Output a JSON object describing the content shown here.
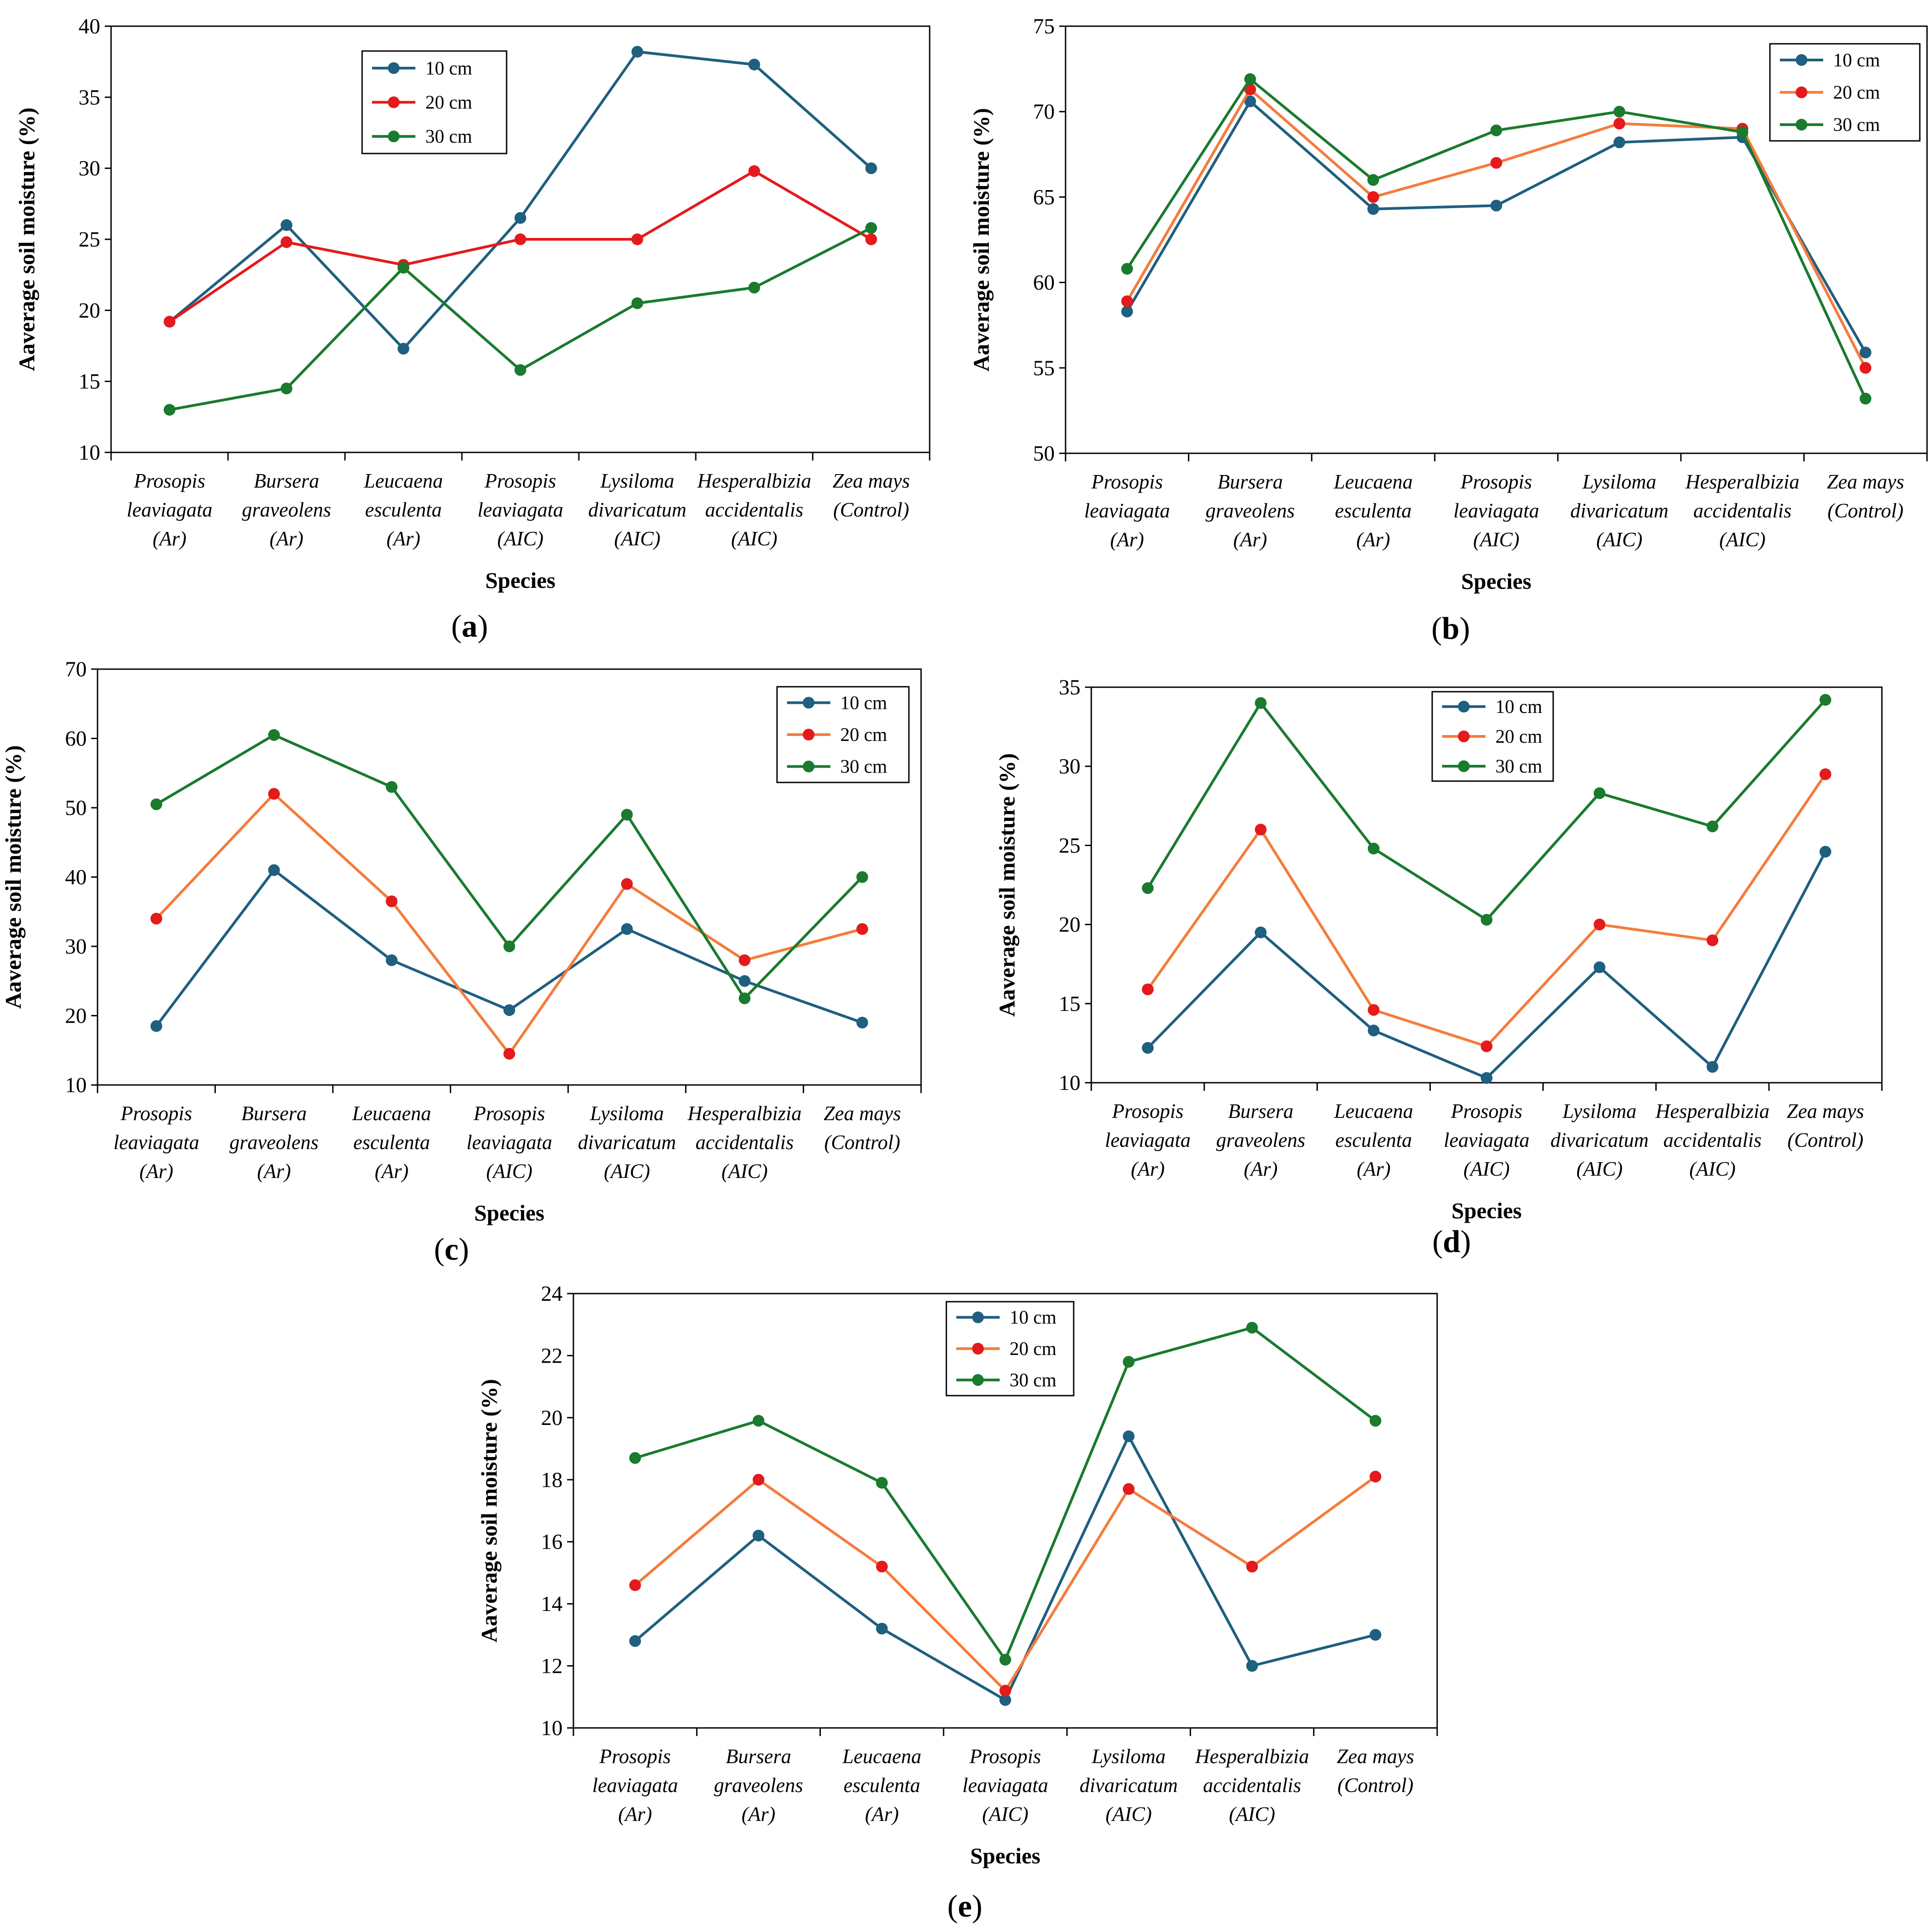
{
  "figure": {
    "panels": [
      "a",
      "b",
      "c",
      "d",
      "e"
    ]
  },
  "chart_data": [
    {
      "id": "a",
      "type": "line",
      "label": "a",
      "title": "",
      "xlabel": "Species",
      "ylabel": "Aaverage soil moisture (%)",
      "ylim": [
        10,
        40
      ],
      "yticks": [
        10,
        15,
        20,
        25,
        30,
        35,
        40
      ],
      "grid": false,
      "legend_position": "top-center",
      "categories": [
        [
          "Prosopis",
          "leaviagata",
          "(Ar)"
        ],
        [
          "Bursera",
          "graveolens",
          "(Ar)"
        ],
        [
          "Leucaena",
          "esculenta",
          "(Ar)"
        ],
        [
          "Prosopis",
          "leaviagata",
          "(AIC)"
        ],
        [
          "Lysiloma",
          "divaricatum",
          "(AIC)"
        ],
        [
          "Hesperalbizia",
          "accidentalis",
          "(AIC)"
        ],
        [
          "Zea mays",
          "(Control)"
        ]
      ],
      "series": [
        {
          "name": "10 cm",
          "color": "#1f5f7f",
          "values": [
            19.2,
            26.0,
            17.3,
            26.5,
            38.2,
            37.3,
            30.0
          ]
        },
        {
          "name": "20 cm",
          "color": "#e41a1c",
          "values": [
            19.2,
            24.8,
            23.2,
            25.0,
            25.0,
            29.8,
            25.0
          ]
        },
        {
          "name": "30 cm",
          "color": "#1a7a2e",
          "values": [
            13.0,
            14.5,
            23.0,
            15.8,
            20.5,
            21.6,
            25.8
          ]
        }
      ]
    },
    {
      "id": "b",
      "type": "line",
      "label": "b",
      "title": "",
      "xlabel": "Species",
      "ylabel": "Aaverage soil moisture (%)",
      "ylim": [
        50,
        75
      ],
      "yticks": [
        50,
        55,
        60,
        65,
        70,
        75
      ],
      "grid": false,
      "legend_position": "top-right",
      "categories": [
        [
          "Prosopis",
          "leaviagata",
          "(Ar)"
        ],
        [
          "Bursera",
          "graveolens",
          "(Ar)"
        ],
        [
          "Leucaena",
          "esculenta",
          "(Ar)"
        ],
        [
          "Prosopis",
          "leaviagata",
          "(AIC)"
        ],
        [
          "Lysiloma",
          "divaricatum",
          "(AIC)"
        ],
        [
          "Hesperalbizia",
          "accidentalis",
          "(AIC)"
        ],
        [
          "Zea mays",
          "(Control)"
        ]
      ],
      "series": [
        {
          "name": "10 cm",
          "color": "#1f5f7f",
          "marker": "#1f5f7f",
          "values": [
            58.3,
            70.6,
            64.3,
            64.5,
            68.2,
            68.5,
            55.9
          ]
        },
        {
          "name": "20 cm",
          "color": "#f47c3c",
          "marker": "#e41a1c",
          "values": [
            58.9,
            71.3,
            65.0,
            67.0,
            69.3,
            69.0,
            55.0
          ]
        },
        {
          "name": "30 cm",
          "color": "#1a7a2e",
          "marker": "#1a7a2e",
          "values": [
            60.8,
            71.9,
            66.0,
            68.9,
            70.0,
            68.8,
            53.2
          ]
        }
      ]
    },
    {
      "id": "c",
      "type": "line",
      "label": "c",
      "title": "",
      "xlabel": "Species",
      "ylabel": "Aaverage soil moisture (%)",
      "ylim": [
        10,
        70
      ],
      "yticks": [
        10,
        20,
        30,
        40,
        50,
        60,
        70
      ],
      "grid": false,
      "legend_position": "top-right",
      "categories": [
        [
          "Prosopis",
          "leaviagata",
          "(Ar)"
        ],
        [
          "Bursera",
          "graveolens",
          "(Ar)"
        ],
        [
          "Leucaena",
          "esculenta",
          "(Ar)"
        ],
        [
          "Prosopis",
          "leaviagata",
          "(AIC)"
        ],
        [
          "Lysiloma",
          "divaricatum",
          "(AIC)"
        ],
        [
          "Hesperalbizia",
          "accidentalis",
          "(AIC)"
        ],
        [
          "Zea mays",
          "(Control)"
        ]
      ],
      "series": [
        {
          "name": "10 cm",
          "color": "#1f5f7f",
          "marker": "#1f5f7f",
          "values": [
            18.5,
            41.0,
            28.0,
            20.8,
            32.5,
            25.0,
            19.0
          ]
        },
        {
          "name": "20 cm",
          "color": "#f47c3c",
          "marker": "#e41a1c",
          "values": [
            34.0,
            52.0,
            36.5,
            14.5,
            39.0,
            28.0,
            32.5
          ]
        },
        {
          "name": "30 cm",
          "color": "#1a7a2e",
          "marker": "#1a7a2e",
          "values": [
            50.5,
            60.5,
            53.0,
            30.0,
            49.0,
            22.5,
            40.0
          ]
        }
      ]
    },
    {
      "id": "d",
      "type": "line",
      "label": "d",
      "title": "",
      "xlabel": "Species",
      "ylabel": "Aaverage soil moisture (%)",
      "ylim": [
        10,
        35
      ],
      "yticks": [
        10,
        15,
        20,
        25,
        30,
        35
      ],
      "grid": false,
      "legend_position": "top-center",
      "categories": [
        [
          "Prosopis",
          "leaviagata",
          "(Ar)"
        ],
        [
          "Bursera",
          "graveolens",
          "(Ar)"
        ],
        [
          "Leucaena",
          "esculenta",
          "(Ar)"
        ],
        [
          "Prosopis",
          "leaviagata",
          "(AIC)"
        ],
        [
          "Lysiloma",
          "divaricatum",
          "(AIC)"
        ],
        [
          "Hesperalbizia",
          "accidentalis",
          "(AIC)"
        ],
        [
          "Zea mays",
          "(Control)"
        ]
      ],
      "series": [
        {
          "name": "10 cm",
          "color": "#1f5f7f",
          "marker": "#1f5f7f",
          "values": [
            12.2,
            19.5,
            13.3,
            10.3,
            17.3,
            11.0,
            24.6
          ]
        },
        {
          "name": "20 cm",
          "color": "#f47c3c",
          "marker": "#e41a1c",
          "values": [
            15.9,
            26.0,
            14.6,
            12.3,
            20.0,
            19.0,
            29.5
          ]
        },
        {
          "name": "30 cm",
          "color": "#1a7a2e",
          "marker": "#1a7a2e",
          "values": [
            22.3,
            34.0,
            24.8,
            20.3,
            28.3,
            26.2,
            34.2
          ]
        }
      ]
    },
    {
      "id": "e",
      "type": "line",
      "label": "e",
      "title": "",
      "xlabel": "Species",
      "ylabel": "Aaverage soil moisture (%)",
      "ylim": [
        10,
        24
      ],
      "yticks": [
        10,
        12,
        14,
        16,
        18,
        20,
        22,
        24
      ],
      "grid": false,
      "legend_position": "top-left",
      "categories": [
        [
          "Prosopis",
          "leaviagata",
          "(Ar)"
        ],
        [
          "Bursera",
          "graveolens",
          "(Ar)"
        ],
        [
          "Leucaena",
          "esculenta",
          "(Ar)"
        ],
        [
          "Prosopis",
          "leaviagata",
          "(AIC)"
        ],
        [
          "Lysiloma",
          "divaricatum",
          "(AIC)"
        ],
        [
          "Hesperalbizia",
          "accidentalis",
          "(AIC)"
        ],
        [
          "Zea mays",
          "(Control)"
        ]
      ],
      "series": [
        {
          "name": "10 cm",
          "color": "#1f5f7f",
          "marker": "#1f5f7f",
          "values": [
            12.8,
            16.2,
            13.2,
            10.9,
            19.4,
            12.0,
            13.0
          ]
        },
        {
          "name": "20 cm",
          "color": "#f47c3c",
          "marker": "#e41a1c",
          "values": [
            14.6,
            18.0,
            15.2,
            11.2,
            17.7,
            15.2,
            18.1
          ]
        },
        {
          "name": "30 cm",
          "color": "#1a7a2e",
          "marker": "#1a7a2e",
          "values": [
            18.7,
            19.9,
            17.9,
            12.2,
            21.8,
            22.9,
            19.9
          ]
        }
      ]
    }
  ]
}
